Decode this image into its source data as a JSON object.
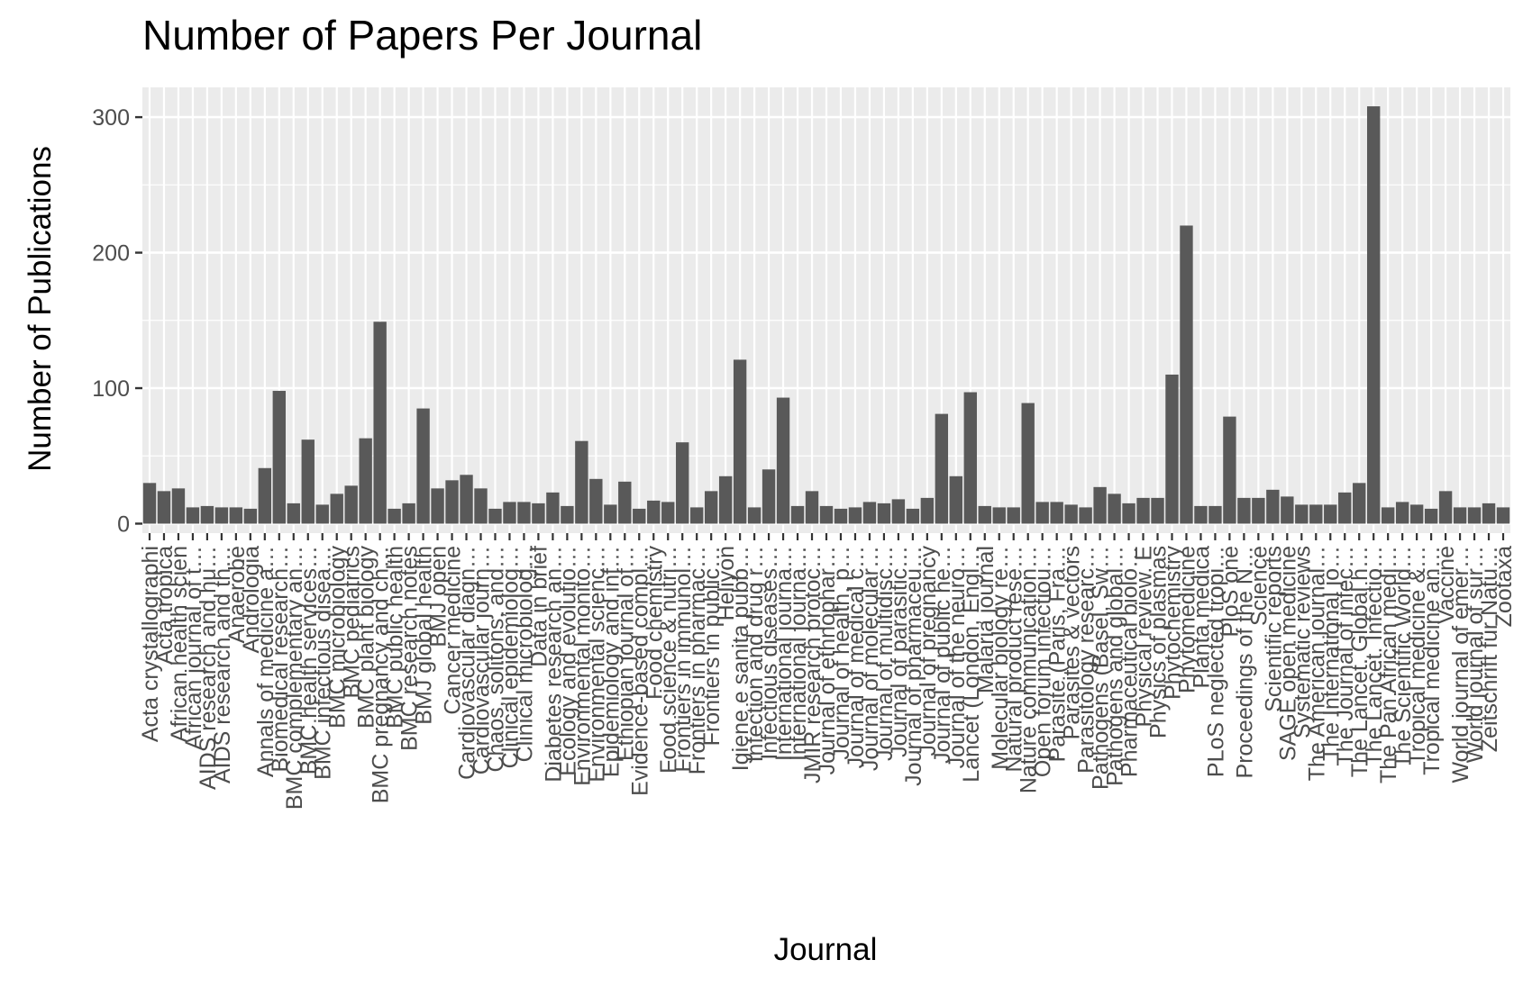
{
  "chart_data": {
    "type": "bar",
    "title": "Number of Papers Per Journal",
    "xlabel": "Journal",
    "ylabel": "Number of Publications",
    "ylim": [
      -7,
      322
    ],
    "yticks": [
      0,
      100,
      200,
      300
    ],
    "grid": true,
    "bar_color": "#595959",
    "panel_color": "#ebebeb",
    "categories": [
      "Acta crystallographi",
      "Acta tropica",
      "African health scien",
      "African journal of t…",
      "AIDS research and hu…",
      "AIDS research and th…",
      "Anaerobe",
      "Andrologia",
      "Annals of medicine a…",
      "Biomedical research…",
      "BMC complementary an…",
      "BMC health services…",
      "BMC infectious disea…",
      "BMC microbiology",
      "BMC pediatrics",
      "BMC plant biology",
      "BMC pregnancy and ch…",
      "BMC public health",
      "BMC research notes",
      "BMJ global health",
      "BMJ open",
      "Cancer medicine",
      "Cardiovascular diagn…",
      "Cardiovascular journ…",
      "Chaos, solitons, and…",
      "Clinical epidemiolog…",
      "Clinical microbiolog…",
      "Data in brief",
      "Diabetes research an…",
      "Ecology and evolutio…",
      "Environmental monito…",
      "Environmental scienc…",
      "Epidemiology and inf…",
      "Ethiopian journal of…",
      "Evidence-based compl…",
      "Food chemistry",
      "Food science & nutri…",
      "Frontiers in immunol…",
      "Frontiers in pharmac…",
      "Frontiers in public…",
      "Heliyon",
      "Igiene e sanita pubb…",
      "Infection and drug r…",
      "Infectious diseases…",
      "International journa…",
      "International journa…",
      "JMIR research protoc…",
      "Journal of ethnophar…",
      "Journal of health, p…",
      "Journal of medical c…",
      "Journal of molecular…",
      "Journal of multidisc…",
      "Journal of parasitic…",
      "Journal of pharmaceu…",
      "Journal of pregnancy",
      "Journal of public he…",
      "Journal of the neuro…",
      "Lancet (London, Engl…",
      "Malaria journal",
      "Molecular biology re…",
      "Natural product rese…",
      "Nature communication…",
      "Open forum infectiou…",
      "Parasite (Paris, Fra…",
      "Parasites & vectors",
      "Parasitology researc…",
      "Pathogens (Basel, Sw…",
      "Pathogens and global…",
      "Pharmaceutical biolo…",
      "Physical review. E",
      "Physics of plasmas",
      "Phytochemistry",
      "Phytomedicine",
      "Planta medica",
      "PLoS neglected tropi…",
      "PloS one",
      "Proceedings of the N…",
      "Science",
      "Scientific reports",
      "SAGE open medicine",
      "Systematic reviews",
      "The American journal…",
      "The International jo…",
      "The Journal of infec…",
      "The Lancet. Global h…",
      "The Lancet. Infectio…",
      "The Pan African medi…",
      "The Scientific World…",
      "Tropical medicine &…",
      "Tropical medicine an…",
      "Vaccine",
      "World journal of emer…",
      "World journal of sur…",
      "Zeitschrift für Natu…",
      "Zootaxa"
    ],
    "values": [
      30,
      24,
      26,
      12,
      13,
      12,
      12,
      11,
      41,
      98,
      15,
      62,
      14,
      22,
      28,
      63,
      149,
      11,
      15,
      85,
      26,
      32,
      36,
      26,
      11,
      16,
      16,
      15,
      23,
      13,
      61,
      33,
      14,
      31,
      11,
      17,
      16,
      60,
      12,
      24,
      35,
      121,
      12,
      40,
      93,
      13,
      24,
      13,
      11,
      12,
      16,
      15,
      18,
      11,
      19,
      81,
      35,
      97,
      13,
      12,
      12,
      89,
      16,
      16,
      14,
      12,
      27,
      22,
      15,
      19,
      19,
      110,
      220,
      13,
      13,
      79,
      19,
      19,
      25,
      20,
      14,
      14,
      14,
      23,
      30,
      308,
      12,
      16,
      14,
      11,
      24,
      12,
      12,
      15,
      12
    ]
  }
}
